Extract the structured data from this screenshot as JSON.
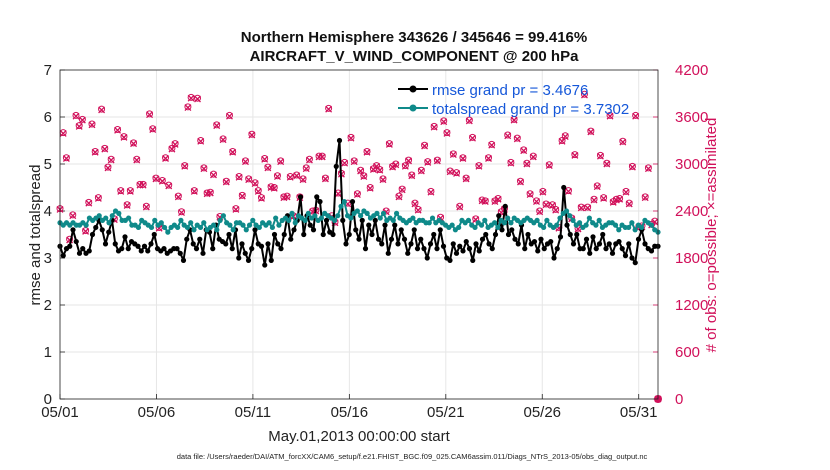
{
  "chart_data": {
    "type": "line",
    "title_line1": "Northern Hemisphere 343626 / 345646 = 99.416%",
    "title_line2": "AIRCRAFT_V_WIND_COMPONENT @ 200 hPa",
    "xlabel": "May.01,2013 00:00:00 start",
    "ylabel_left": "rmse and totalspread",
    "ylabel_right": "# of obs: o=possible; ×=assimilated",
    "xlim": [
      0,
      31
    ],
    "ylim_left": [
      0,
      7
    ],
    "ylim_right": [
      0,
      4200
    ],
    "x_ticks": [
      0,
      5,
      10,
      15,
      20,
      25,
      30
    ],
    "x_tick_labels": [
      "05/01",
      "05/06",
      "05/11",
      "05/16",
      "05/21",
      "05/26",
      "05/31"
    ],
    "y_ticks_left": [
      "0",
      "1",
      "2",
      "3",
      "4",
      "5",
      "6",
      "7"
    ],
    "y_ticks_right": [
      "0",
      "600",
      "1200",
      "1800",
      "2400",
      "3000",
      "3600",
      "4200"
    ],
    "grid": true,
    "legend_position": "top-right",
    "footer": "data file: /Users/raeder/DAI/ATM_forcXX/CAM6_setup/f.e21.FHIST_BGC.f09_025.CAM6assim.011/Diags_NTrS_2013-05/obs_diag_output.nc",
    "colors": {
      "rmse": "#000000",
      "spread": "#0f8a8a",
      "obs": "#d1105a",
      "legend_text": "#1557d9"
    },
    "series": [
      {
        "name": "rmse grand pr = 3.4676",
        "role": "rmse",
        "values": [
          3.25,
          3.05,
          3.2,
          3.25,
          3.6,
          3.35,
          3.1,
          3.2,
          3.1,
          3.15,
          3.5,
          3.65,
          3.8,
          3.6,
          3.3,
          3.55,
          3.8,
          3.3,
          3.15,
          3.2,
          3.45,
          3.2,
          3.35,
          3.3,
          3.25,
          3.15,
          3.25,
          3.15,
          3.3,
          3.5,
          3.2,
          3.15,
          3.2,
          3.1,
          3.15,
          3.2,
          3.2,
          3.1,
          2.95,
          3.4,
          3.6,
          3.3,
          3.2,
          3.4,
          3.1,
          3.6,
          3.55,
          3.2,
          3.7,
          3.4,
          3.35,
          3.3,
          3.5,
          3.2,
          3.6,
          3.0,
          3.3,
          3.1,
          2.95,
          3.2,
          3.6,
          3.3,
          3.25,
          2.85,
          3.3,
          2.95,
          3.5,
          3.3,
          3.2,
          3.5,
          3.9,
          3.4,
          3.6,
          3.8,
          4.3,
          3.5,
          3.9,
          3.7,
          3.6,
          4.3,
          4.2,
          3.5,
          3.8,
          3.55,
          3.5,
          4.95,
          5.5,
          3.8,
          3.3,
          3.5,
          4.2,
          3.6,
          3.4,
          3.8,
          3.2,
          3.7,
          3.5,
          3.8,
          3.4,
          3.3,
          3.7,
          3.1,
          3.4,
          3.7,
          3.3,
          3.6,
          3.4,
          3.1,
          3.3,
          3.6,
          3.2,
          3.4,
          3.2,
          3.0,
          3.3,
          3.5,
          3.2,
          3.6,
          3.25,
          3.0,
          2.95,
          3.3,
          3.1,
          3.25,
          3.15,
          3.35,
          3.2,
          2.95,
          3.3,
          3.15,
          3.4,
          3.5,
          3.3,
          3.2,
          3.5,
          3.9,
          3.6,
          4.1,
          3.5,
          3.6,
          3.4,
          3.3,
          3.7,
          3.2,
          3.5,
          3.3,
          3.35,
          3.15,
          3.4,
          3.2,
          3.3,
          3.35,
          3.0,
          3.2,
          3.45,
          4.5,
          3.7,
          3.5,
          3.3,
          3.5,
          3.2,
          3.2,
          3.4,
          3.1,
          3.45,
          3.2,
          3.3,
          3.5,
          3.2,
          3.3,
          3.1,
          3.3,
          3.35,
          3.2,
          3.05,
          3.3,
          3.0,
          2.9,
          3.4,
          3.6,
          3.3,
          3.2,
          3.15,
          3.25,
          3.25
        ]
      },
      {
        "name": "totalspread grand pr = 3.7302",
        "role": "spread",
        "values": [
          3.75,
          3.7,
          3.75,
          3.7,
          3.75,
          3.7,
          3.7,
          3.75,
          3.7,
          3.85,
          3.8,
          3.85,
          3.9,
          3.8,
          3.85,
          3.75,
          3.9,
          4.0,
          3.95,
          3.8,
          3.8,
          3.85,
          3.7,
          3.7,
          3.65,
          3.8,
          3.75,
          3.7,
          3.65,
          3.8,
          3.7,
          3.75,
          3.65,
          3.55,
          3.65,
          3.7,
          3.65,
          3.8,
          3.7,
          3.65,
          3.75,
          3.6,
          3.7,
          3.65,
          3.75,
          3.6,
          3.65,
          3.7,
          3.6,
          3.8,
          3.9,
          3.75,
          3.7,
          3.6,
          3.75,
          3.75,
          3.7,
          3.6,
          3.7,
          3.8,
          3.7,
          3.65,
          3.75,
          3.7,
          3.75,
          3.65,
          3.85,
          3.7,
          3.8,
          3.85,
          3.8,
          3.95,
          3.75,
          3.9,
          3.85,
          3.8,
          3.95,
          3.85,
          3.9,
          3.8,
          3.85,
          3.95,
          3.9,
          3.85,
          3.8,
          3.9,
          4.1,
          4.2,
          3.9,
          3.85,
          3.95,
          4.0,
          3.9,
          4.0,
          3.95,
          3.85,
          3.9,
          3.95,
          3.85,
          3.95,
          3.8,
          3.85,
          3.8,
          3.95,
          3.85,
          3.8,
          3.75,
          3.8,
          3.85,
          3.75,
          3.8,
          3.8,
          3.75,
          3.75,
          3.85,
          3.75,
          3.8,
          3.75,
          3.7,
          3.65,
          3.7,
          3.6,
          3.65,
          3.8,
          3.75,
          3.8,
          3.7,
          3.65,
          3.75,
          3.7,
          3.8,
          3.65,
          3.7,
          3.75,
          3.65,
          3.8,
          3.75,
          3.85,
          3.75,
          3.85,
          3.8,
          3.75,
          3.8,
          3.85,
          3.8,
          3.75,
          3.8,
          3.7,
          3.65,
          3.8,
          3.7,
          3.65,
          3.7,
          3.85,
          3.95,
          4.0,
          3.9,
          3.8,
          3.7,
          3.75,
          3.65,
          3.7,
          3.85,
          3.75,
          3.7,
          3.8,
          3.65,
          3.7,
          3.75,
          3.75,
          3.7,
          3.6,
          3.7,
          3.65,
          3.65,
          3.75,
          3.6,
          3.7,
          3.65,
          3.8,
          3.75,
          3.7,
          3.6,
          3.55
        ]
      }
    ],
    "obs_possible": [
      2430,
      3400,
      3080,
      2040,
      2350,
      3620,
      3490,
      3570,
      2150,
      2510,
      3510,
      3160,
      2570,
      3700,
      3200,
      2960,
      3060,
      2300,
      3440,
      2660,
      3350,
      2480,
      2660,
      3270,
      3060,
      2740,
      2740,
      2460,
      3640,
      3450,
      2820,
      2190,
      2790,
      3080,
      2730,
      3200,
      3260,
      2590,
      2390,
      2980,
      3730,
      3850,
      2660,
      3840,
      3300,
      2950,
      2630,
      2640,
      2870,
      3500,
      2330,
      3320,
      2780,
      3620,
      3160,
      2430,
      2840,
      2600,
      3040,
      2810,
      3380,
      2760,
      2660,
      2570,
      3070,
      2960,
      2710,
      2700,
      2850,
      3040,
      2580,
      2590,
      2840,
      2340,
      2860,
      2580,
      2810,
      2950,
      3060,
      2400,
      2410,
      3100,
      3100,
      2820,
      3710,
      2340,
      2260,
      2630,
      2880,
      3020,
      2500,
      3340,
      3040,
      2620,
      2920,
      2850,
      3160,
      2700,
      2940,
      2980,
      2930,
      2810,
      2400,
      3260,
      2970,
      3000,
      2590,
      2680,
      2980,
      3050,
      2860,
      2500,
      2420,
      2920,
      3240,
      3030,
      2650,
      3480,
      3050,
      2320,
      3550,
      3400,
      2910,
      3130,
      2890,
      2460,
      3080,
      2820,
      3560,
      3340,
      2300,
      2980,
      2540,
      2530,
      3080,
      3250,
      2530,
      2560,
      2390,
      2430,
      3370,
      3020,
      3570,
      3330,
      2780,
      3180,
      3010,
      2620,
      3100,
      2530,
      2400,
      2650,
      2490,
      2990,
      2480,
      2420,
      2190,
      3300,
      3360,
      2660,
      2310,
      3120,
      2180,
      2450,
      3890,
      2450,
      3420,
      2550,
      2720,
      3110,
      2570,
      3010,
      3620,
      2520,
      2550,
      2560,
      3290,
      2650,
      2500,
      2970,
      3620,
      2200,
      2210,
      2580,
      2950,
      2230,
      2270,
      0
    ],
    "obs_assimilated": [
      2420,
      3390,
      3070,
      2030,
      2340,
      3610,
      3480,
      3560,
      2140,
      2500,
      3500,
      3150,
      2560,
      3690,
      3190,
      2950,
      3050,
      2290,
      3430,
      2650,
      3340,
      2470,
      2650,
      3260,
      3050,
      2730,
      2730,
      2450,
      3630,
      3440,
      2810,
      2180,
      2780,
      3070,
      2720,
      3190,
      3250,
      2580,
      2380,
      2970,
      3720,
      3840,
      2650,
      3830,
      3290,
      2940,
      2620,
      2630,
      2860,
      3490,
      2320,
      3310,
      2770,
      3610,
      3150,
      2420,
      2830,
      2590,
      3030,
      2800,
      3370,
      2750,
      2650,
      2560,
      3060,
      2950,
      2700,
      2690,
      2840,
      3030,
      2570,
      2580,
      2830,
      2330,
      2850,
      2570,
      2800,
      2940,
      3050,
      2390,
      2400,
      3090,
      3090,
      2810,
      3700,
      2330,
      2250,
      2620,
      2870,
      3010,
      2490,
      3330,
      3030,
      2610,
      2910,
      2840,
      3150,
      2690,
      2930,
      2970,
      2920,
      2800,
      2390,
      3250,
      2960,
      2990,
      2580,
      2670,
      2970,
      3040,
      2850,
      2490,
      2410,
      2910,
      3230,
      3020,
      2640,
      3470,
      3040,
      2310,
      3540,
      3390,
      2900,
      3120,
      2880,
      2450,
      3070,
      2810,
      3550,
      3330,
      2290,
      2970,
      2530,
      2520,
      3070,
      3240,
      2520,
      2550,
      2380,
      2420,
      3360,
      3010,
      3560,
      3320,
      2770,
      3170,
      3000,
      2610,
      3090,
      2520,
      2390,
      2640,
      2480,
      2980,
      2470,
      2410,
      2180,
      3290,
      3350,
      2650,
      2300,
      3110,
      2170,
      2440,
      3880,
      2440,
      3410,
      2540,
      2710,
      3100,
      2560,
      3000,
      3610,
      2510,
      2540,
      2550,
      3280,
      2640,
      2490,
      2960,
      3610,
      2190,
      2200,
      2570,
      2940,
      2220,
      2260,
      0
    ]
  }
}
